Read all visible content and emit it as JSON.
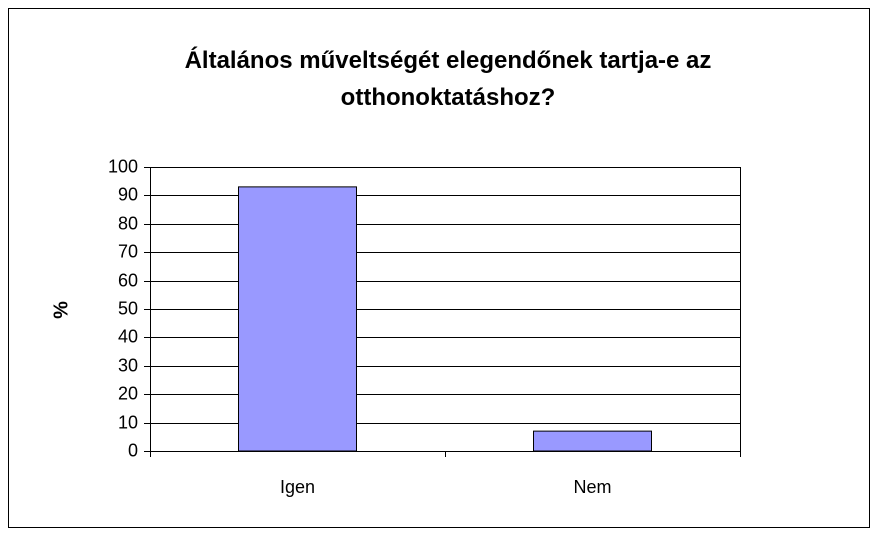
{
  "chart_data": {
    "type": "bar",
    "title": "Általános műveltségét elegendőnek tartja-e az otthonoktatáshoz?",
    "y_label": "%",
    "categories": [
      "Igen",
      "Nem"
    ],
    "values": [
      93,
      7
    ],
    "color": "#9999ff",
    "ylim": [
      0,
      100
    ],
    "yticks": [
      0,
      10,
      20,
      30,
      40,
      50,
      60,
      70,
      80,
      90,
      100
    ],
    "grid": true
  }
}
